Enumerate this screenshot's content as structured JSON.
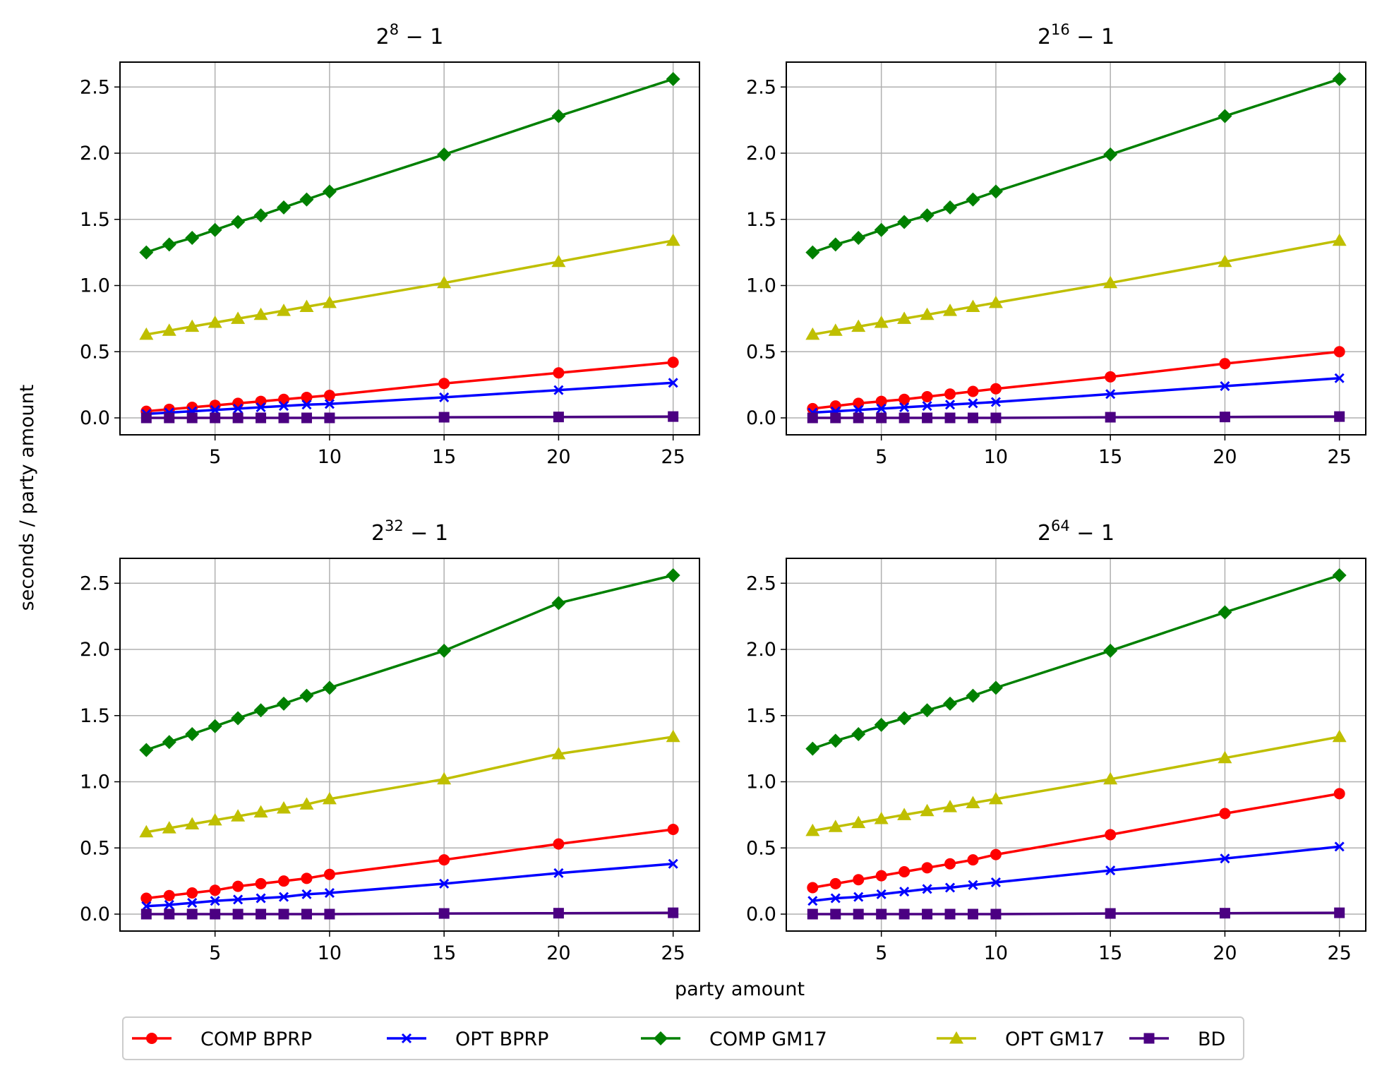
{
  "figure": {
    "ylabel": "seconds / party amount",
    "xlabel": "party amount"
  },
  "legend": {
    "placement": "bottom-center",
    "entries": [
      {
        "label": "COMP BPRP",
        "color": "#ff0000",
        "marker": "circle"
      },
      {
        "label": "OPT BPRP",
        "color": "#0000ff",
        "marker": "x"
      },
      {
        "label": "COMP GM17",
        "color": "#008000",
        "marker": "diamond"
      },
      {
        "label": "OPT GM17",
        "color": "#bfbf00",
        "marker": "triangle"
      },
      {
        "label": "BD",
        "color": "#4b0082",
        "marker": "square"
      }
    ]
  },
  "chart_data": [
    {
      "type": "line",
      "title": {
        "base": "2",
        "exp": "8",
        "rest": " − 1"
      },
      "x": [
        2,
        3,
        4,
        5,
        6,
        7,
        8,
        9,
        10,
        15,
        20,
        25
      ],
      "xticks": [
        5,
        10,
        15,
        20,
        25
      ],
      "yticks": [
        "0.0",
        "0.5",
        "1.0",
        "1.5",
        "2.0",
        "2.5"
      ],
      "xlim": [
        0.85,
        26.15
      ],
      "ylim": [
        -0.128,
        2.688
      ],
      "grid": true,
      "series": [
        {
          "name": "COMP BPRP",
          "values": [
            0.05,
            0.065,
            0.08,
            0.095,
            0.11,
            0.125,
            0.14,
            0.155,
            0.17,
            0.26,
            0.34,
            0.42
          ]
        },
        {
          "name": "OPT BPRP",
          "values": [
            0.03,
            0.04,
            0.05,
            0.06,
            0.07,
            0.08,
            0.09,
            0.1,
            0.105,
            0.155,
            0.21,
            0.265
          ]
        },
        {
          "name": "COMP GM17",
          "values": [
            1.25,
            1.31,
            1.36,
            1.42,
            1.48,
            1.53,
            1.59,
            1.65,
            1.71,
            1.99,
            2.28,
            2.56
          ]
        },
        {
          "name": "OPT GM17",
          "values": [
            0.63,
            0.66,
            0.69,
            0.72,
            0.75,
            0.78,
            0.81,
            0.84,
            0.87,
            1.02,
            1.18,
            1.34
          ]
        },
        {
          "name": "BD",
          "values": [
            0.0,
            0.0,
            0.0,
            0.0,
            0.0,
            0.0,
            0.0,
            0.0,
            0.0,
            0.005,
            0.007,
            0.01
          ]
        }
      ]
    },
    {
      "type": "line",
      "title": {
        "base": "2",
        "exp": "16",
        "rest": " − 1"
      },
      "x": [
        2,
        3,
        4,
        5,
        6,
        7,
        8,
        9,
        10,
        15,
        20,
        25
      ],
      "xticks": [
        5,
        10,
        15,
        20,
        25
      ],
      "yticks": [
        "0.0",
        "0.5",
        "1.0",
        "1.5",
        "2.0",
        "2.5"
      ],
      "xlim": [
        0.85,
        26.15
      ],
      "ylim": [
        -0.128,
        2.688
      ],
      "grid": true,
      "series": [
        {
          "name": "COMP BPRP",
          "values": [
            0.07,
            0.09,
            0.11,
            0.125,
            0.14,
            0.16,
            0.18,
            0.2,
            0.22,
            0.31,
            0.41,
            0.5
          ]
        },
        {
          "name": "OPT BPRP",
          "values": [
            0.04,
            0.05,
            0.06,
            0.07,
            0.08,
            0.09,
            0.1,
            0.11,
            0.12,
            0.18,
            0.24,
            0.3
          ]
        },
        {
          "name": "COMP GM17",
          "values": [
            1.25,
            1.31,
            1.36,
            1.42,
            1.48,
            1.53,
            1.59,
            1.65,
            1.71,
            1.99,
            2.28,
            2.56
          ]
        },
        {
          "name": "OPT GM17",
          "values": [
            0.63,
            0.66,
            0.69,
            0.72,
            0.75,
            0.78,
            0.81,
            0.84,
            0.87,
            1.02,
            1.18,
            1.34
          ]
        },
        {
          "name": "BD",
          "values": [
            0.0,
            0.0,
            0.0,
            0.0,
            0.0,
            0.0,
            0.0,
            0.0,
            0.0,
            0.005,
            0.007,
            0.01
          ]
        }
      ]
    },
    {
      "type": "line",
      "title": {
        "base": "2",
        "exp": "32",
        "rest": " − 1"
      },
      "x": [
        2,
        3,
        4,
        5,
        6,
        7,
        8,
        9,
        10,
        15,
        20,
        25
      ],
      "xticks": [
        5,
        10,
        15,
        20,
        25
      ],
      "yticks": [
        "0.0",
        "0.5",
        "1.0",
        "1.5",
        "2.0",
        "2.5"
      ],
      "xlim": [
        0.85,
        26.15
      ],
      "ylim": [
        -0.128,
        2.688
      ],
      "grid": true,
      "series": [
        {
          "name": "COMP BPRP",
          "values": [
            0.12,
            0.14,
            0.16,
            0.18,
            0.21,
            0.23,
            0.25,
            0.27,
            0.3,
            0.41,
            0.53,
            0.64
          ]
        },
        {
          "name": "OPT BPRP",
          "values": [
            0.06,
            0.07,
            0.085,
            0.1,
            0.11,
            0.12,
            0.13,
            0.15,
            0.16,
            0.23,
            0.31,
            0.38
          ]
        },
        {
          "name": "COMP GM17",
          "values": [
            1.24,
            1.3,
            1.36,
            1.42,
            1.48,
            1.54,
            1.59,
            1.65,
            1.71,
            1.99,
            2.35,
            2.56
          ]
        },
        {
          "name": "OPT GM17",
          "values": [
            0.62,
            0.65,
            0.68,
            0.71,
            0.74,
            0.77,
            0.8,
            0.83,
            0.87,
            1.02,
            1.21,
            1.34
          ]
        },
        {
          "name": "BD",
          "values": [
            0.0,
            0.0,
            0.0,
            0.0,
            0.0,
            0.0,
            0.0,
            0.0,
            0.0,
            0.005,
            0.007,
            0.01
          ]
        }
      ]
    },
    {
      "type": "line",
      "title": {
        "base": "2",
        "exp": "64",
        "rest": " − 1"
      },
      "x": [
        2,
        3,
        4,
        5,
        6,
        7,
        8,
        9,
        10,
        15,
        20,
        25
      ],
      "xticks": [
        5,
        10,
        15,
        20,
        25
      ],
      "yticks": [
        "0.0",
        "0.5",
        "1.0",
        "1.5",
        "2.0",
        "2.5"
      ],
      "xlim": [
        0.85,
        26.15
      ],
      "ylim": [
        -0.128,
        2.688
      ],
      "grid": true,
      "series": [
        {
          "name": "COMP BPRP",
          "values": [
            0.2,
            0.23,
            0.26,
            0.29,
            0.32,
            0.35,
            0.38,
            0.41,
            0.45,
            0.6,
            0.76,
            0.91
          ]
        },
        {
          "name": "OPT BPRP",
          "values": [
            0.1,
            0.12,
            0.13,
            0.15,
            0.17,
            0.19,
            0.2,
            0.22,
            0.24,
            0.33,
            0.42,
            0.51
          ]
        },
        {
          "name": "COMP GM17",
          "values": [
            1.25,
            1.31,
            1.36,
            1.43,
            1.48,
            1.54,
            1.59,
            1.65,
            1.71,
            1.99,
            2.28,
            2.56
          ]
        },
        {
          "name": "OPT GM17",
          "values": [
            0.63,
            0.66,
            0.69,
            0.72,
            0.75,
            0.78,
            0.81,
            0.84,
            0.87,
            1.02,
            1.18,
            1.34
          ]
        },
        {
          "name": "BD",
          "values": [
            0.0,
            0.0,
            0.0,
            0.0,
            0.0,
            0.0,
            0.0,
            0.0,
            0.0,
            0.005,
            0.007,
            0.01
          ]
        }
      ]
    }
  ]
}
